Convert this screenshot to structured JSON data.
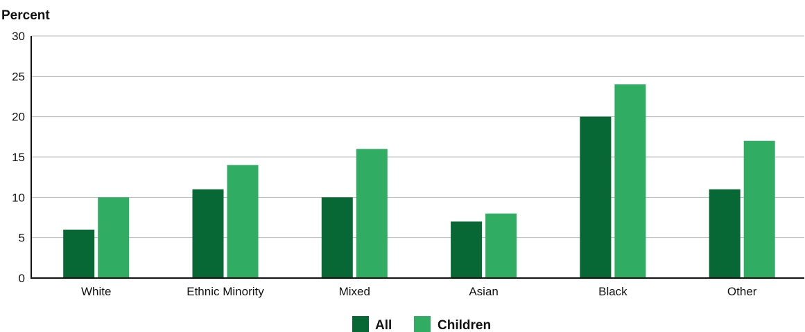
{
  "chart_data": {
    "type": "bar",
    "ylabel": "Percent",
    "xlabel": "",
    "categories": [
      "White",
      "Ethnic Minority",
      "Mixed",
      "Asian",
      "Black",
      "Other"
    ],
    "series": [
      {
        "name": "All",
        "values": [
          6,
          11,
          10,
          7,
          20,
          11
        ],
        "color": "#076735"
      },
      {
        "name": "Children",
        "values": [
          10,
          14,
          16,
          8,
          24,
          17
        ],
        "color": "#30ad62"
      }
    ],
    "ylim": [
      0,
      30
    ],
    "yticks": [
      0,
      5,
      10,
      15,
      20,
      25,
      30
    ],
    "grid": true,
    "legend": "bottom-center"
  }
}
